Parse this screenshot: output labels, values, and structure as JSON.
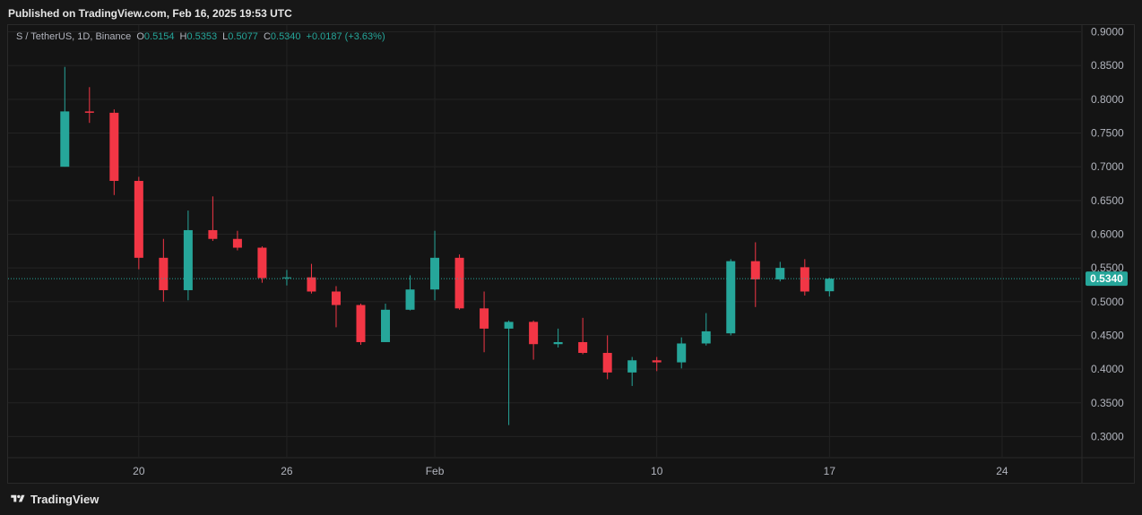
{
  "header": {
    "published": "Published on TradingView.com, Feb 16, 2025 19:53 UTC"
  },
  "legend": {
    "symbol": "S / TetherUS, 1D, Binance",
    "o_label": "O",
    "o_value": "0.5154",
    "h_label": "H",
    "h_value": "0.5353",
    "l_label": "L",
    "l_value": "0.5077",
    "c_label": "C",
    "c_value": "0.5340",
    "change": "+0.0187 (+3.63%)"
  },
  "footer": {
    "brand": "TradingView"
  },
  "colors": {
    "up": "#26a69a",
    "down": "#f23645",
    "background": "#141414",
    "grid": "#232323",
    "price_line": "#26a69a"
  },
  "chart_data": {
    "type": "candlestick",
    "title": "S / TetherUS, 1D, Binance",
    "current_price": 0.534,
    "current_price_label": "0.5340",
    "ylim": [
      0.27,
      0.91
    ],
    "y_ticks": [
      "0.9000",
      "0.8500",
      "0.8000",
      "0.7500",
      "0.7000",
      "0.6500",
      "0.6000",
      "0.5500",
      "0.5000",
      "0.4500",
      "0.4000",
      "0.3500",
      "0.3000"
    ],
    "y_tick_values": [
      0.9,
      0.85,
      0.8,
      0.75,
      0.7,
      0.65,
      0.6,
      0.55,
      0.5,
      0.45,
      0.4,
      0.35,
      0.3
    ],
    "x_ticks": [
      {
        "label": "20",
        "day": 20
      },
      {
        "label": "26",
        "day": 26
      },
      {
        "label": "Feb",
        "day": 32
      },
      {
        "label": "10",
        "day": 41
      },
      {
        "label": "17",
        "day": 48
      },
      {
        "label": "24",
        "day": 55
      }
    ],
    "xlim_days": [
      14.7,
      58.2
    ],
    "grid": true,
    "candles": [
      {
        "date": "Jan 17",
        "day": 17,
        "o": 0.7,
        "h": 0.848,
        "l": 0.7,
        "c": 0.782
      },
      {
        "date": "Jan 18",
        "day": 18,
        "o": 0.782,
        "h": 0.818,
        "l": 0.765,
        "c": 0.78
      },
      {
        "date": "Jan 19",
        "day": 19,
        "o": 0.78,
        "h": 0.785,
        "l": 0.658,
        "c": 0.679
      },
      {
        "date": "Jan 20",
        "day": 20,
        "o": 0.679,
        "h": 0.685,
        "l": 0.548,
        "c": 0.565
      },
      {
        "date": "Jan 21",
        "day": 21,
        "o": 0.565,
        "h": 0.593,
        "l": 0.5,
        "c": 0.517
      },
      {
        "date": "Jan 22",
        "day": 22,
        "o": 0.517,
        "h": 0.635,
        "l": 0.502,
        "c": 0.606
      },
      {
        "date": "Jan 23",
        "day": 23,
        "o": 0.606,
        "h": 0.656,
        "l": 0.59,
        "c": 0.593
      },
      {
        "date": "Jan 24",
        "day": 24,
        "o": 0.593,
        "h": 0.605,
        "l": 0.576,
        "c": 0.58
      },
      {
        "date": "Jan 25",
        "day": 25,
        "o": 0.58,
        "h": 0.582,
        "l": 0.528,
        "c": 0.535
      },
      {
        "date": "Jan 26",
        "day": 26,
        "o": 0.535,
        "h": 0.547,
        "l": 0.524,
        "c": 0.536
      },
      {
        "date": "Jan 27",
        "day": 27,
        "o": 0.536,
        "h": 0.556,
        "l": 0.512,
        "c": 0.515
      },
      {
        "date": "Jan 28",
        "day": 28,
        "o": 0.515,
        "h": 0.523,
        "l": 0.462,
        "c": 0.495
      },
      {
        "date": "Jan 29",
        "day": 29,
        "o": 0.495,
        "h": 0.497,
        "l": 0.436,
        "c": 0.44
      },
      {
        "date": "Jan 30",
        "day": 30,
        "o": 0.44,
        "h": 0.497,
        "l": 0.44,
        "c": 0.488
      },
      {
        "date": "Jan 31",
        "day": 31,
        "o": 0.488,
        "h": 0.539,
        "l": 0.487,
        "c": 0.518
      },
      {
        "date": "Feb 1",
        "day": 32,
        "o": 0.518,
        "h": 0.605,
        "l": 0.502,
        "c": 0.565
      },
      {
        "date": "Feb 2",
        "day": 33,
        "o": 0.565,
        "h": 0.57,
        "l": 0.488,
        "c": 0.49
      },
      {
        "date": "Feb 3",
        "day": 34,
        "o": 0.49,
        "h": 0.515,
        "l": 0.425,
        "c": 0.46
      },
      {
        "date": "Feb 4",
        "day": 35,
        "o": 0.46,
        "h": 0.472,
        "l": 0.317,
        "c": 0.47
      },
      {
        "date": "Feb 5",
        "day": 36,
        "o": 0.47,
        "h": 0.472,
        "l": 0.414,
        "c": 0.437
      },
      {
        "date": "Feb 6",
        "day": 37,
        "o": 0.437,
        "h": 0.46,
        "l": 0.432,
        "c": 0.44
      },
      {
        "date": "Feb 7",
        "day": 38,
        "o": 0.44,
        "h": 0.476,
        "l": 0.422,
        "c": 0.424
      },
      {
        "date": "Feb 8",
        "day": 39,
        "o": 0.424,
        "h": 0.45,
        "l": 0.385,
        "c": 0.395
      },
      {
        "date": "Feb 9",
        "day": 40,
        "o": 0.395,
        "h": 0.418,
        "l": 0.375,
        "c": 0.413
      },
      {
        "date": "Feb 10",
        "day": 41,
        "o": 0.413,
        "h": 0.418,
        "l": 0.397,
        "c": 0.41
      },
      {
        "date": "Feb 11",
        "day": 42,
        "o": 0.41,
        "h": 0.447,
        "l": 0.401,
        "c": 0.438
      },
      {
        "date": "Feb 12",
        "day": 43,
        "o": 0.438,
        "h": 0.483,
        "l": 0.435,
        "c": 0.456
      },
      {
        "date": "Feb 13",
        "day": 44,
        "o": 0.453,
        "h": 0.563,
        "l": 0.45,
        "c": 0.56
      },
      {
        "date": "Feb 14",
        "day": 45,
        "o": 0.56,
        "h": 0.588,
        "l": 0.492,
        "c": 0.533
      },
      {
        "date": "Feb 15",
        "day": 46,
        "o": 0.533,
        "h": 0.559,
        "l": 0.53,
        "c": 0.55
      },
      {
        "date": "Feb 16",
        "day": 47,
        "o": 0.551,
        "h": 0.563,
        "l": 0.509,
        "c": 0.515
      },
      {
        "date": "Feb 17",
        "day": 48,
        "o": 0.5154,
        "h": 0.5353,
        "l": 0.5077,
        "c": 0.534
      }
    ]
  }
}
